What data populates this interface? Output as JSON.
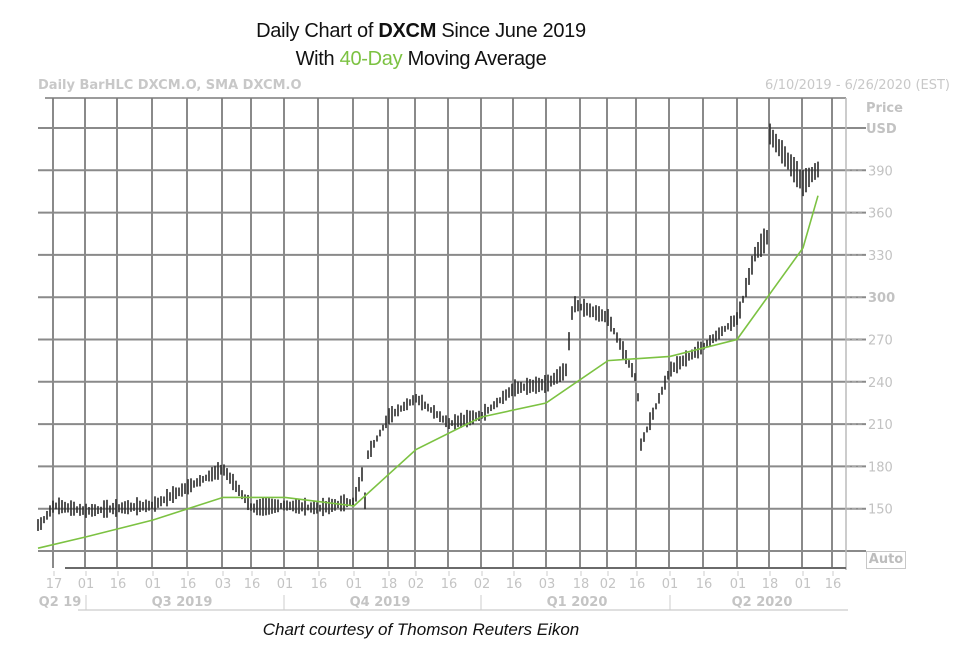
{
  "header": {
    "title_line1_prefix": "Daily Chart of ",
    "title_line1_ticker": "DXCM",
    "title_line1_suffix": " Since June 2019",
    "title_line2_prefix": "With ",
    "title_line2_highlight": "40-Day",
    "title_line2_suffix": " Moving Average",
    "study_label": "Daily BarHLC DXCM.O, SMA DXCM.O",
    "date_range": "6/10/2019 - 6/26/2020 (EST)"
  },
  "axis": {
    "price_label": "Price",
    "currency_label": "USD",
    "auto_button": "Auto"
  },
  "footer": {
    "credit": "Chart courtesy of Thomson Reuters Eikon"
  },
  "colors": {
    "price_bars": "#2a2a2a",
    "sma": "#7cc242",
    "grid": "#8a8a8a",
    "axis_text": "#c4c4c4"
  },
  "chart_data": {
    "type": "bar",
    "subtype": "OHLC daily bars (HLC) with 40-day simple moving average line",
    "title": "Daily Chart of DXCM Since June 2019 With 40-Day Moving Average",
    "ticker": "DXCM.O",
    "xlabel": "",
    "ylabel": "Price USD",
    "ylim": [
      112,
      432
    ],
    "y_ticks": [
      150,
      180,
      210,
      240,
      270,
      300,
      330,
      360,
      390
    ],
    "grid": true,
    "legend": "none",
    "x_tick_labels": [
      "17",
      "01",
      "16",
      "01",
      "16",
      "03",
      "16",
      "01",
      "16",
      "01",
      "18",
      "02",
      "16",
      "02",
      "16",
      "03",
      "18",
      "02",
      "16",
      "01",
      "16",
      "01",
      "18",
      "01",
      "16"
    ],
    "x_quarter_labels": [
      "Q2 19",
      "Q3 2019",
      "Q4 2019",
      "Q1 2020",
      "Q2 2020"
    ],
    "price_series_approx": {
      "x": [
        "2019-06-10",
        "2019-06-17",
        "2019-07-01",
        "2019-07-16",
        "2019-08-01",
        "2019-08-16",
        "2019-09-03",
        "2019-09-16",
        "2019-10-01",
        "2019-10-16",
        "2019-11-01",
        "2019-11-08",
        "2019-11-18",
        "2019-12-02",
        "2019-12-16",
        "2020-01-02",
        "2020-01-16",
        "2020-02-03",
        "2020-02-14",
        "2020-02-18",
        "2020-03-02",
        "2020-03-16",
        "2020-03-18",
        "2020-04-01",
        "2020-04-16",
        "2020-05-01",
        "2020-05-12",
        "2020-05-18",
        "2020-06-01",
        "2020-06-10",
        "2020-06-26"
      ],
      "close": [
        138,
        152,
        148,
        150,
        152,
        165,
        178,
        150,
        152,
        150,
        155,
        188,
        215,
        228,
        210,
        216,
        235,
        238,
        248,
        295,
        285,
        240,
        195,
        248,
        265,
        285,
        330,
        345,
        415,
        380,
        390
      ]
    },
    "sma_40_approx": {
      "x": [
        "2019-06-10",
        "2019-07-01",
        "2019-08-01",
        "2019-09-03",
        "2019-10-01",
        "2019-11-01",
        "2019-12-02",
        "2020-01-02",
        "2020-02-03",
        "2020-03-02",
        "2020-04-01",
        "2020-05-01",
        "2020-06-01",
        "2020-06-26"
      ],
      "values": [
        122,
        130,
        142,
        158,
        158,
        152,
        192,
        215,
        225,
        255,
        258,
        270,
        335,
        372
      ]
    }
  }
}
